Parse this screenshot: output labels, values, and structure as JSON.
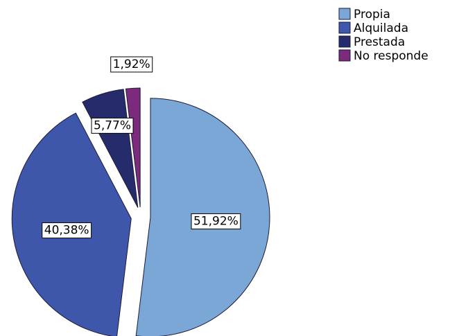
{
  "chart_data": {
    "type": "pie",
    "categories": [
      "Propia",
      "Alquilada",
      "Prestada",
      "No responde"
    ],
    "values": [
      51.92,
      40.38,
      5.77,
      1.92
    ],
    "value_labels": [
      "51,92%",
      "40,38%",
      "5,77%",
      "1,92%"
    ],
    "colors": [
      "#7ba7d7",
      "#3f57ab",
      "#262b6c",
      "#7c2a7b"
    ],
    "legend": "top-right"
  }
}
